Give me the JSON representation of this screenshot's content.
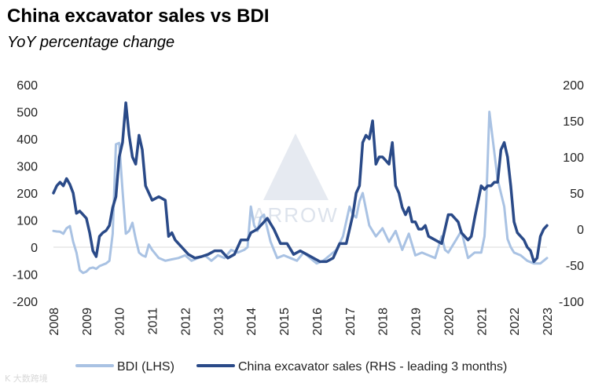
{
  "title": "China excavator sales vs BDI",
  "subtitle": "YoY percentage change",
  "watermark_text": "ARROW",
  "corner_mark": "K 大数跨境",
  "colors": {
    "bdi": "#a9c2e3",
    "excavator": "#2a4a88",
    "axis": "#d9d9d9",
    "text": "#222222",
    "watermark": "#dde3ec"
  },
  "chart_data": {
    "type": "line",
    "xlabel": "",
    "ylabel": "",
    "x_range": [
      2008,
      2023
    ],
    "x_tick_labels": [
      "2008",
      "2009",
      "2010",
      "2011",
      "2012",
      "2013",
      "2014",
      "2015",
      "2016",
      "2017",
      "2018",
      "2019",
      "2020",
      "2021",
      "2022",
      "2023"
    ],
    "y_left_range": [
      -200,
      600
    ],
    "y_left_ticks": [
      "600",
      "500",
      "400",
      "300",
      "200",
      "100",
      "0",
      "-100",
      "-200"
    ],
    "y_right_range": [
      -100,
      200
    ],
    "y_right_ticks": [
      "200",
      "150",
      "100",
      "50",
      "0",
      "-50",
      "-100"
    ],
    "legend_position": "bottom",
    "series": [
      {
        "name": "BDI (LHS)",
        "axis": "left",
        "color": "#a9c2e3",
        "x": [
          2008.0,
          2008.1,
          2008.2,
          2008.3,
          2008.4,
          2008.5,
          2008.6,
          2008.7,
          2008.8,
          2008.9,
          2009.0,
          2009.1,
          2009.2,
          2009.3,
          2009.4,
          2009.5,
          2009.6,
          2009.7,
          2009.8,
          2009.9,
          2010.0,
          2010.1,
          2010.2,
          2010.3,
          2010.4,
          2010.5,
          2010.6,
          2010.7,
          2010.8,
          2010.9,
          2011.0,
          2011.2,
          2011.4,
          2011.6,
          2011.8,
          2012.0,
          2012.2,
          2012.4,
          2012.6,
          2012.8,
          2013.0,
          2013.2,
          2013.4,
          2013.6,
          2013.8,
          2013.9,
          2014.0,
          2014.1,
          2014.2,
          2014.3,
          2014.4,
          2014.6,
          2014.8,
          2015.0,
          2015.2,
          2015.4,
          2015.6,
          2015.8,
          2016.0,
          2016.2,
          2016.4,
          2016.6,
          2016.8,
          2017.0,
          2017.1,
          2017.2,
          2017.3,
          2017.4,
          2017.6,
          2017.8,
          2018.0,
          2018.2,
          2018.4,
          2018.6,
          2018.8,
          2019.0,
          2019.2,
          2019.4,
          2019.6,
          2019.8,
          2019.9,
          2020.0,
          2020.2,
          2020.4,
          2020.6,
          2020.8,
          2021.0,
          2021.1,
          2021.15,
          2021.25,
          2021.35,
          2021.5,
          2021.6,
          2021.7,
          2021.8,
          2021.9,
          2022.0,
          2022.2,
          2022.4,
          2022.6,
          2022.8,
          2023.0
        ],
        "y": [
          60,
          58,
          57,
          50,
          70,
          78,
          20,
          -20,
          -85,
          -95,
          -90,
          -78,
          -75,
          -80,
          -70,
          -65,
          -60,
          -50,
          50,
          380,
          385,
          210,
          50,
          60,
          90,
          30,
          -20,
          -30,
          -35,
          10,
          -10,
          -40,
          -50,
          -45,
          -40,
          -30,
          -50,
          -40,
          -30,
          -50,
          -30,
          -40,
          -10,
          -20,
          -10,
          0,
          150,
          80,
          60,
          110,
          120,
          20,
          -40,
          -30,
          -40,
          -50,
          -20,
          -40,
          -60,
          -50,
          -30,
          -10,
          40,
          150,
          120,
          110,
          170,
          200,
          80,
          40,
          70,
          20,
          60,
          -10,
          50,
          -30,
          -20,
          -30,
          -40,
          40,
          -10,
          -20,
          20,
          60,
          -40,
          -20,
          -20,
          40,
          150,
          500,
          400,
          250,
          200,
          150,
          30,
          0,
          -20,
          -30,
          -50,
          -60,
          -60,
          -40
        ],
        "values_note": ""
      },
      {
        "name": "China excavator sales (RHS - leading 3 months)",
        "axis": "right",
        "color": "#2a4a88",
        "x": [
          2008.0,
          2008.1,
          2008.2,
          2008.3,
          2008.4,
          2008.5,
          2008.6,
          2008.7,
          2008.8,
          2008.9,
          2009.0,
          2009.1,
          2009.2,
          2009.3,
          2009.4,
          2009.5,
          2009.6,
          2009.7,
          2009.8,
          2009.9,
          2010.0,
          2010.1,
          2010.2,
          2010.3,
          2010.4,
          2010.5,
          2010.6,
          2010.7,
          2010.8,
          2010.9,
          2011.0,
          2011.2,
          2011.4,
          2011.5,
          2011.6,
          2011.7,
          2011.8,
          2011.9,
          2012.0,
          2012.1,
          2012.3,
          2012.5,
          2012.7,
          2012.9,
          2013.1,
          2013.3,
          2013.5,
          2013.7,
          2013.9,
          2014.0,
          2014.2,
          2014.4,
          2014.5,
          2014.7,
          2014.9,
          2015.1,
          2015.3,
          2015.5,
          2015.7,
          2015.9,
          2016.1,
          2016.3,
          2016.5,
          2016.7,
          2016.9,
          2017.0,
          2017.1,
          2017.2,
          2017.3,
          2017.4,
          2017.5,
          2017.6,
          2017.7,
          2017.8,
          2017.9,
          2018.0,
          2018.1,
          2018.2,
          2018.3,
          2018.4,
          2018.5,
          2018.6,
          2018.7,
          2018.8,
          2018.9,
          2019.0,
          2019.1,
          2019.2,
          2019.3,
          2019.4,
          2019.6,
          2019.8,
          2020.0,
          2020.1,
          2020.2,
          2020.3,
          2020.4,
          2020.5,
          2020.6,
          2020.7,
          2020.8,
          2021.0,
          2021.1,
          2021.2,
          2021.3,
          2021.4,
          2021.5,
          2021.6,
          2021.7,
          2021.8,
          2021.9,
          2022.0,
          2022.1,
          2022.2,
          2022.3,
          2022.4,
          2022.5,
          2022.6,
          2022.7,
          2022.8,
          2022.9,
          2023.0
        ],
        "y": [
          50,
          60,
          65,
          60,
          70,
          62,
          50,
          22,
          25,
          20,
          15,
          -5,
          -30,
          -38,
          -10,
          -5,
          -2,
          5,
          30,
          45,
          100,
          120,
          175,
          130,
          100,
          90,
          130,
          110,
          60,
          50,
          40,
          45,
          40,
          -10,
          -5,
          -15,
          -20,
          -25,
          -30,
          -35,
          -40,
          -38,
          -35,
          -30,
          -30,
          -40,
          -35,
          -15,
          -15,
          -5,
          0,
          10,
          15,
          0,
          -20,
          -20,
          -35,
          -30,
          -35,
          -40,
          -45,
          -45,
          -40,
          -20,
          -20,
          0,
          20,
          50,
          60,
          120,
          130,
          125,
          150,
          90,
          100,
          100,
          95,
          90,
          120,
          60,
          50,
          30,
          20,
          30,
          10,
          10,
          0,
          0,
          5,
          -10,
          -15,
          -20,
          20,
          20,
          15,
          10,
          -5,
          -10,
          -15,
          -10,
          15,
          60,
          55,
          60,
          60,
          65,
          65,
          110,
          120,
          100,
          60,
          10,
          -5,
          -10,
          -15,
          -25,
          -30,
          -45,
          -40,
          -10,
          0,
          5
        ]
      }
    ]
  }
}
